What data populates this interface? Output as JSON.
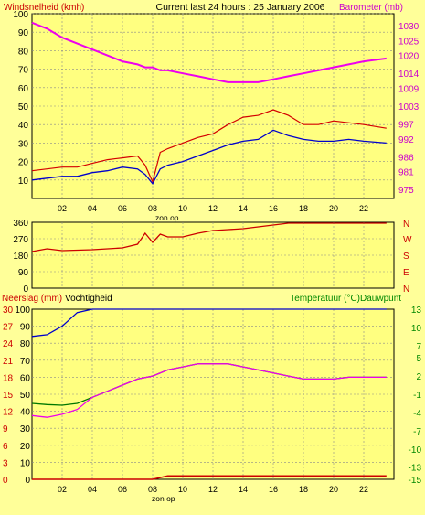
{
  "colors": {
    "background": "#ffff99",
    "plot": "#ffff80",
    "grid": "#8a8a8a",
    "wind": "#d40000",
    "wind_avg": "#0000cc",
    "barometer": "#ee00ee",
    "direction": "#cc0000",
    "rain": "#cc0000",
    "humidity": "#0000cc",
    "temperature": "#007700",
    "dewpoint": "#ee00ee",
    "left_label": "#cc0000",
    "right_label_top": "#cc00cc",
    "right_label_mid": "#cc0000",
    "right_label_bottom": "#008800"
  },
  "chart_data": [
    {
      "type": "line",
      "title": "Current last 24 hours : 25 January 2006",
      "left_label": "Windsnelheid (kmh)",
      "right_label": "Barometer (mb)",
      "x_ticks": [
        "02",
        "04",
        "06",
        "08",
        "10",
        "12",
        "14",
        "16",
        "18",
        "20",
        "22"
      ],
      "x_note": "zon op",
      "ylim_left": [
        0,
        100
      ],
      "left_ticks": [
        10,
        20,
        30,
        40,
        50,
        60,
        70,
        80,
        90,
        100
      ],
      "ylim_right": [
        972,
        1034
      ],
      "right_ticks": [
        975,
        981,
        986,
        992,
        997,
        1003,
        1009,
        1014,
        1020,
        1025,
        1030
      ],
      "grid": true,
      "x": [
        0,
        1,
        2,
        3,
        4,
        5,
        6,
        7,
        7.5,
        8,
        8.5,
        9,
        10,
        11,
        12,
        13,
        14,
        15,
        16,
        17,
        18,
        19,
        20,
        21,
        22,
        23.5
      ],
      "series": [
        {
          "key": "gust",
          "values": [
            15,
            16,
            17,
            17,
            19,
            21,
            22,
            23,
            18,
            9,
            25,
            27,
            30,
            33,
            35,
            40,
            44,
            45,
            48,
            45,
            40,
            40,
            42,
            41,
            40,
            38
          ]
        },
        {
          "key": "avg",
          "values": [
            10,
            11,
            12,
            12,
            14,
            15,
            17,
            16,
            13,
            8,
            16,
            18,
            20,
            23,
            26,
            29,
            31,
            32,
            37,
            34,
            32,
            31,
            31,
            32,
            31,
            30
          ]
        },
        {
          "key": "baro",
          "values": [
            1031,
            1029,
            1026,
            1024,
            1022,
            1020,
            1018,
            1017,
            1016,
            1016,
            1015,
            1015,
            1014,
            1013,
            1012,
            1011,
            1011,
            1011,
            1012,
            1013,
            1014,
            1015,
            1016,
            1017,
            1018,
            1019
          ]
        }
      ]
    },
    {
      "type": "line",
      "left_label": "",
      "right_label": "",
      "ylim_left": [
        0,
        360
      ],
      "left_ticks": [
        0,
        90,
        180,
        270,
        360
      ],
      "right_ticks": [
        "W",
        "S",
        "E",
        "N"
      ],
      "right_top_label": "N",
      "grid": true,
      "x": [
        0,
        1,
        2,
        4,
        6,
        7,
        7.5,
        8,
        8.5,
        9,
        10,
        11,
        12,
        13,
        14,
        15,
        16,
        17,
        18,
        20,
        22,
        23.5
      ],
      "series": [
        {
          "key": "direction",
          "values": [
            200,
            215,
            205,
            210,
            220,
            240,
            300,
            250,
            295,
            280,
            280,
            300,
            315,
            320,
            325,
            335,
            345,
            355,
            355,
            355,
            355,
            355
          ]
        }
      ]
    },
    {
      "type": "line",
      "left_label": "Neerslag (mm)",
      "left2_label": "Vochtigheid",
      "right_label": "Temperatuur (°C)",
      "right2_label": "Dauwpunt",
      "x_ticks": [
        "02",
        "04",
        "06",
        "08",
        "10",
        "12",
        "14",
        "16",
        "18",
        "20",
        "22"
      ],
      "x_note": "zon op",
      "ylim_left": [
        0,
        100
      ],
      "rain_ticks": [
        0,
        3,
        6,
        9,
        12,
        15,
        18,
        21,
        24,
        27,
        30
      ],
      "humidity_ticks": [
        0,
        10,
        20,
        30,
        40,
        50,
        60,
        70,
        80,
        90,
        100
      ],
      "ylim_right": [
        -15,
        13
      ],
      "right_ticks": [
        -15,
        -13,
        -10,
        -7,
        -4,
        -1,
        2,
        5,
        7,
        10,
        13
      ],
      "grid": true,
      "x": [
        0,
        1,
        2,
        3,
        4,
        5,
        6,
        7,
        8,
        9,
        10,
        11,
        12,
        13,
        14,
        15,
        16,
        17,
        18,
        19,
        20,
        21,
        22,
        23.5
      ],
      "series": [
        {
          "key": "rain",
          "values": [
            0,
            0,
            0,
            0,
            0,
            0,
            0,
            0,
            0,
            0.6,
            0.6,
            0.6,
            0.6,
            0.6,
            0.6,
            0.6,
            0.6,
            0.6,
            0.6,
            0.6,
            0.6,
            0.6,
            0.6,
            0.6
          ]
        },
        {
          "key": "humidity",
          "values": [
            84,
            85,
            90,
            98,
            100,
            100,
            100,
            100,
            100,
            100,
            100,
            100,
            100,
            100,
            100,
            100,
            100,
            100,
            100,
            100,
            100,
            100,
            100,
            100
          ]
        },
        {
          "key": "temperature",
          "values": [
            -2.5,
            -2.7,
            -2.8,
            -2.5,
            -1.5,
            -0.5,
            0.5,
            1.5,
            2.0,
            3.0,
            3.5,
            4.0,
            4.0,
            4.0,
            3.5,
            3.0,
            2.5,
            2.0,
            1.5,
            1.5,
            1.5,
            1.8,
            1.8,
            1.8
          ]
        },
        {
          "key": "dewpoint",
          "values": [
            -4.5,
            -4.8,
            -4.3,
            -3.5,
            -1.5,
            -0.5,
            0.5,
            1.5,
            2.0,
            3.0,
            3.5,
            4.0,
            4.0,
            4.0,
            3.5,
            3.0,
            2.5,
            2.0,
            1.5,
            1.5,
            1.5,
            1.8,
            1.8,
            1.8
          ]
        }
      ]
    }
  ]
}
